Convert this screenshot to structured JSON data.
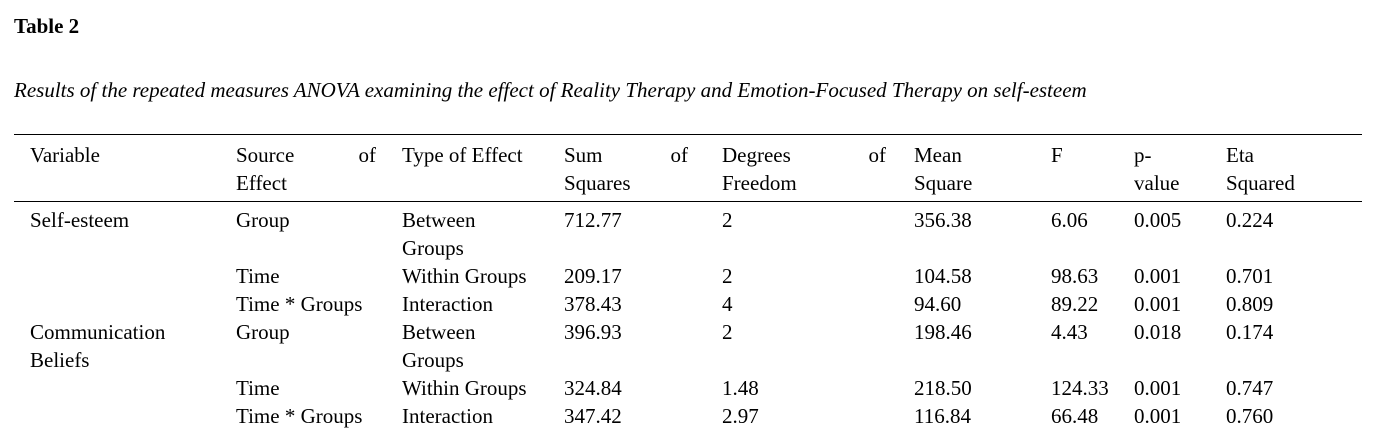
{
  "title": "Table 2",
  "caption": "Results of the repeated measures ANOVA examining the effect of Reality Therapy and Emotion-Focused Therapy on self-esteem",
  "table": {
    "headers": [
      "Variable",
      "Source of Effect",
      "Type of Effect",
      "Sum of Squares",
      "Degrees of Freedom",
      "Mean Square",
      "F",
      "p-value",
      "Eta Squared"
    ],
    "rows": [
      [
        "Self-esteem",
        "Group",
        "Between Groups",
        "712.77",
        "2",
        "356.38",
        "6.06",
        "0.005",
        "0.224"
      ],
      [
        "",
        "Time",
        "Within Groups",
        "209.17",
        "2",
        "104.58",
        "98.63",
        "0.001",
        "0.701"
      ],
      [
        "",
        "Time * Groups",
        "Interaction",
        "378.43",
        "4",
        "94.60",
        "89.22",
        "0.001",
        "0.809"
      ],
      [
        "Communication Beliefs",
        "Group",
        "Between Groups",
        "396.93",
        "2",
        "198.46",
        "4.43",
        "0.018",
        "0.174"
      ],
      [
        "",
        "Time",
        "Within Groups",
        "324.84",
        "1.48",
        "218.50",
        "124.33",
        "0.001",
        "0.747"
      ],
      [
        "",
        "Time * Groups",
        "Interaction",
        "347.42",
        "2.97",
        "116.84",
        "66.48",
        "0.001",
        "0.760"
      ]
    ]
  }
}
